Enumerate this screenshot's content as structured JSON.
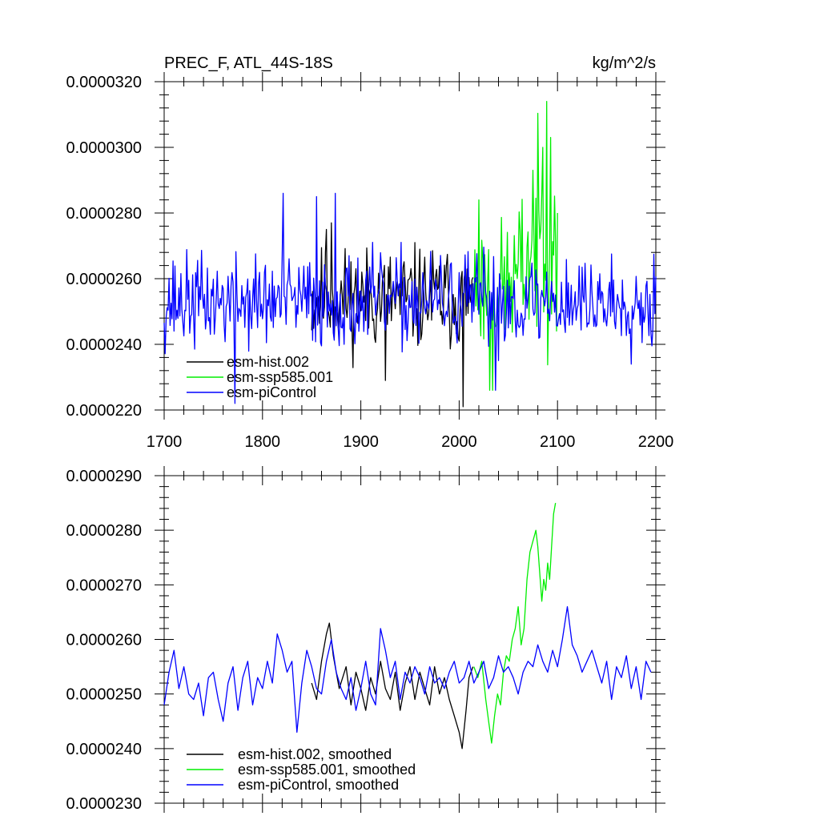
{
  "chart_data": [
    {
      "type": "line",
      "title": "PREC_F, ATL_44S-18S",
      "units": "kg/m^2/s",
      "xlim": [
        1700,
        2200
      ],
      "ylim": [
        2.2e-05,
        3.2e-05
      ],
      "x_ticks": [
        1700,
        1800,
        1900,
        2000,
        2100,
        2200
      ],
      "x_tick_labels": [
        "1700",
        "1800",
        "1900",
        "2000",
        "2100",
        "2200"
      ],
      "y_ticks": [
        2.2e-05,
        2.4e-05,
        2.6e-05,
        2.8e-05,
        3e-05,
        3.2e-05
      ],
      "y_tick_labels": [
        "0.0000220",
        "0.0000240",
        "0.0000260",
        "0.0000280",
        "0.0000300",
        "0.0000320"
      ],
      "legend_position": "bottom-left",
      "series": [
        {
          "name": "esm-hist.002",
          "color": "#000000",
          "x_start": 1850,
          "x_end": 2014,
          "mean": 2.54e-05,
          "noise": 1.1e-06,
          "seed": 11,
          "spikes": [
            [
              1865,
              2.75e-05
            ],
            [
              1870,
              2.77e-05
            ],
            [
              1925,
              2.29e-05
            ],
            [
              2004,
              2.21e-05
            ]
          ]
        },
        {
          "name": "esm-ssp585.001",
          "color": "#00ee00",
          "x_start": 2015,
          "x_end": 2100,
          "mean": 2.58e-05,
          "noise": 1.4e-06,
          "seed": 23,
          "trend": 2.2e-06,
          "spikes": [
            [
              2020,
              2.84e-05
            ],
            [
              2031,
              2.26e-05
            ],
            [
              2034,
              2.26e-05
            ],
            [
              2075,
              2.93e-05
            ],
            [
              2085,
              3e-05
            ],
            [
              2089,
              3.14e-05
            ],
            [
              2093,
              3.03e-05
            ]
          ]
        },
        {
          "name": "esm-piControl",
          "color": "#0000ff",
          "x_start": 1700,
          "x_end": 2200,
          "mean": 2.53e-05,
          "noise": 1e-06,
          "seed": 37,
          "spikes": [
            [
              1772,
              2.22e-05
            ],
            [
              1821,
              2.86e-05
            ],
            [
              1855,
              2.85e-05
            ],
            [
              1874,
              2.86e-05
            ],
            [
              1883,
              2.4e-05
            ],
            [
              2037,
              2.26e-05
            ]
          ]
        }
      ]
    },
    {
      "type": "line",
      "title": "",
      "units": "",
      "xlim": [
        1700,
        2200
      ],
      "ylim": [
        2.3e-05,
        2.9e-05
      ],
      "x_ticks": [
        1700,
        1800,
        1900,
        2000,
        2100,
        2200
      ],
      "x_tick_labels": [],
      "y_ticks": [
        2.3e-05,
        2.4e-05,
        2.5e-05,
        2.6e-05,
        2.7e-05,
        2.8e-05,
        2.9e-05
      ],
      "y_tick_labels": [
        "0.0000230",
        "0.0000240",
        "0.0000250",
        "0.0000260",
        "0.0000270",
        "0.0000280",
        "0.0000290"
      ],
      "legend_position": "bottom-left",
      "series": [
        {
          "name": "esm-hist.002, smoothed",
          "color": "#000000",
          "x": [
            1850,
            1855,
            1860,
            1865,
            1868,
            1872,
            1878,
            1885,
            1890,
            1895,
            1900,
            1905,
            1910,
            1915,
            1920,
            1925,
            1930,
            1935,
            1940,
            1945,
            1950,
            1955,
            1960,
            1965,
            1970,
            1975,
            1980,
            1985,
            1990,
            1995,
            2000,
            2003,
            2007,
            2010,
            2014
          ],
          "values": [
            2.52e-05,
            2.49e-05,
            2.56e-05,
            2.61e-05,
            2.63e-05,
            2.57e-05,
            2.51e-05,
            2.55e-05,
            2.48e-05,
            2.54e-05,
            2.51e-05,
            2.47e-05,
            2.53e-05,
            2.5e-05,
            2.56e-05,
            2.51e-05,
            2.49e-05,
            2.54e-05,
            2.47e-05,
            2.52e-05,
            2.55e-05,
            2.49e-05,
            2.54e-05,
            2.51e-05,
            2.48e-05,
            2.55e-05,
            2.5e-05,
            2.53e-05,
            2.49e-05,
            2.46e-05,
            2.43e-05,
            2.4e-05,
            2.47e-05,
            2.53e-05,
            2.55e-05
          ]
        },
        {
          "name": "esm-ssp585.001, smoothed",
          "color": "#00ee00",
          "x": [
            2015,
            2019,
            2023,
            2027,
            2030,
            2033,
            2036,
            2039,
            2042,
            2045,
            2048,
            2051,
            2054,
            2057,
            2060,
            2063,
            2066,
            2069,
            2072,
            2075,
            2078,
            2080,
            2082,
            2084,
            2086,
            2088,
            2090,
            2092,
            2094,
            2096,
            2098
          ],
          "values": [
            2.55e-05,
            2.53e-05,
            2.56e-05,
            2.49e-05,
            2.45e-05,
            2.41e-05,
            2.46e-05,
            2.5e-05,
            2.48e-05,
            2.54e-05,
            2.57e-05,
            2.56e-05,
            2.6e-05,
            2.62e-05,
            2.66e-05,
            2.59e-05,
            2.62e-05,
            2.71e-05,
            2.76e-05,
            2.78e-05,
            2.8e-05,
            2.77e-05,
            2.72e-05,
            2.67e-05,
            2.71e-05,
            2.69e-05,
            2.74e-05,
            2.71e-05,
            2.77e-05,
            2.83e-05,
            2.85e-05
          ]
        },
        {
          "name": "esm-piControl, smoothed",
          "color": "#0000ff",
          "x": [
            1700,
            1705,
            1710,
            1715,
            1720,
            1725,
            1730,
            1735,
            1740,
            1745,
            1750,
            1755,
            1760,
            1765,
            1770,
            1775,
            1780,
            1785,
            1790,
            1795,
            1800,
            1805,
            1810,
            1815,
            1820,
            1825,
            1830,
            1835,
            1840,
            1845,
            1850,
            1855,
            1860,
            1865,
            1870,
            1875,
            1880,
            1885,
            1890,
            1895,
            1900,
            1905,
            1910,
            1915,
            1920,
            1925,
            1930,
            1935,
            1940,
            1945,
            1950,
            1955,
            1960,
            1965,
            1970,
            1975,
            1980,
            1985,
            1990,
            1995,
            2000,
            2005,
            2010,
            2015,
            2020,
            2025,
            2030,
            2035,
            2040,
            2045,
            2050,
            2055,
            2060,
            2065,
            2070,
            2075,
            2080,
            2085,
            2090,
            2095,
            2100,
            2105,
            2110,
            2115,
            2120,
            2125,
            2130,
            2135,
            2140,
            2145,
            2150,
            2155,
            2160,
            2165,
            2170,
            2175,
            2180,
            2185,
            2190,
            2195
          ],
          "values": [
            2.48e-05,
            2.54e-05,
            2.58e-05,
            2.51e-05,
            2.55e-05,
            2.5e-05,
            2.49e-05,
            2.52e-05,
            2.46e-05,
            2.53e-05,
            2.54e-05,
            2.49e-05,
            2.45e-05,
            2.52e-05,
            2.55e-05,
            2.47e-05,
            2.53e-05,
            2.56e-05,
            2.48e-05,
            2.53e-05,
            2.51e-05,
            2.56e-05,
            2.52e-05,
            2.61e-05,
            2.58e-05,
            2.54e-05,
            2.56e-05,
            2.43e-05,
            2.52e-05,
            2.58e-05,
            2.55e-05,
            2.51e-05,
            2.5e-05,
            2.56e-05,
            2.6e-05,
            2.54e-05,
            2.51e-05,
            2.49e-05,
            2.53e-05,
            2.47e-05,
            2.51e-05,
            2.56e-05,
            2.5e-05,
            2.48e-05,
            2.62e-05,
            2.58e-05,
            2.53e-05,
            2.56e-05,
            2.49e-05,
            2.54e-05,
            2.52e-05,
            2.55e-05,
            2.53e-05,
            2.5e-05,
            2.55e-05,
            2.52e-05,
            2.53e-05,
            2.51e-05,
            2.54e-05,
            2.56e-05,
            2.52e-05,
            2.53e-05,
            2.56e-05,
            2.52e-05,
            2.54e-05,
            2.56e-05,
            2.51e-05,
            2.53e-05,
            2.57e-05,
            2.54e-05,
            2.55e-05,
            2.53e-05,
            2.5e-05,
            2.54e-05,
            2.56e-05,
            2.55e-05,
            2.59e-05,
            2.56e-05,
            2.54e-05,
            2.58e-05,
            2.55e-05,
            2.6e-05,
            2.66e-05,
            2.59e-05,
            2.57e-05,
            2.54e-05,
            2.56e-05,
            2.58e-05,
            2.55e-05,
            2.52e-05,
            2.56e-05,
            2.49e-05,
            2.55e-05,
            2.53e-05,
            2.57e-05,
            2.51e-05,
            2.55e-05,
            2.49e-05,
            2.56e-05,
            2.54e-05
          ]
        }
      ]
    }
  ]
}
